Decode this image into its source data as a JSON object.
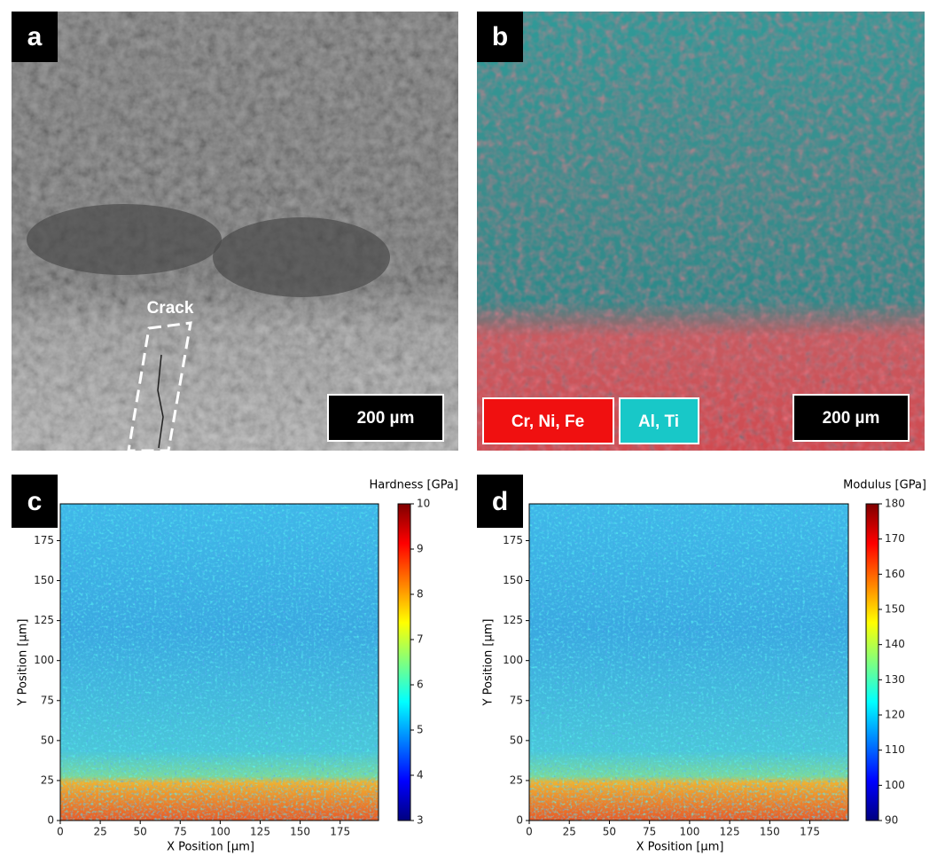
{
  "panels": [
    {
      "label": "a",
      "scale_bar": "200 µm",
      "annotation": "Crack"
    },
    {
      "label": "b",
      "scale_bar": "200 µm",
      "legend": [
        "Cr, Ni, Fe",
        "Al, Ti"
      ]
    }
  ],
  "chart_data": [
    {
      "type": "heatmap",
      "label": "c",
      "xlabel": "X Position [µm]",
      "ylabel": "Y Position [µm]",
      "colorbar_label": "Hardness [GPa]",
      "colormap": "jet",
      "xlim": [
        0,
        199
      ],
      "ylim": [
        0,
        198
      ],
      "xticks": [
        0,
        25,
        50,
        75,
        100,
        125,
        150,
        175
      ],
      "yticks": [
        0,
        25,
        50,
        75,
        100,
        125,
        150,
        175
      ],
      "clim": [
        3,
        10
      ],
      "cticks": [
        3,
        4,
        5,
        6,
        7,
        8,
        9,
        10
      ]
    },
    {
      "type": "heatmap",
      "label": "d",
      "xlabel": "X Position [µm]",
      "ylabel": "Y Position [µm]",
      "colorbar_label": "Modulus [GPa]",
      "colormap": "jet",
      "xlim": [
        0,
        199
      ],
      "ylim": [
        0,
        198
      ],
      "xticks": [
        0,
        25,
        50,
        75,
        100,
        125,
        150,
        175
      ],
      "yticks": [
        0,
        25,
        50,
        75,
        100,
        125,
        150,
        175
      ],
      "clim": [
        90,
        180
      ],
      "cticks": [
        90,
        100,
        110,
        120,
        130,
        140,
        150,
        160,
        170,
        180
      ]
    }
  ]
}
